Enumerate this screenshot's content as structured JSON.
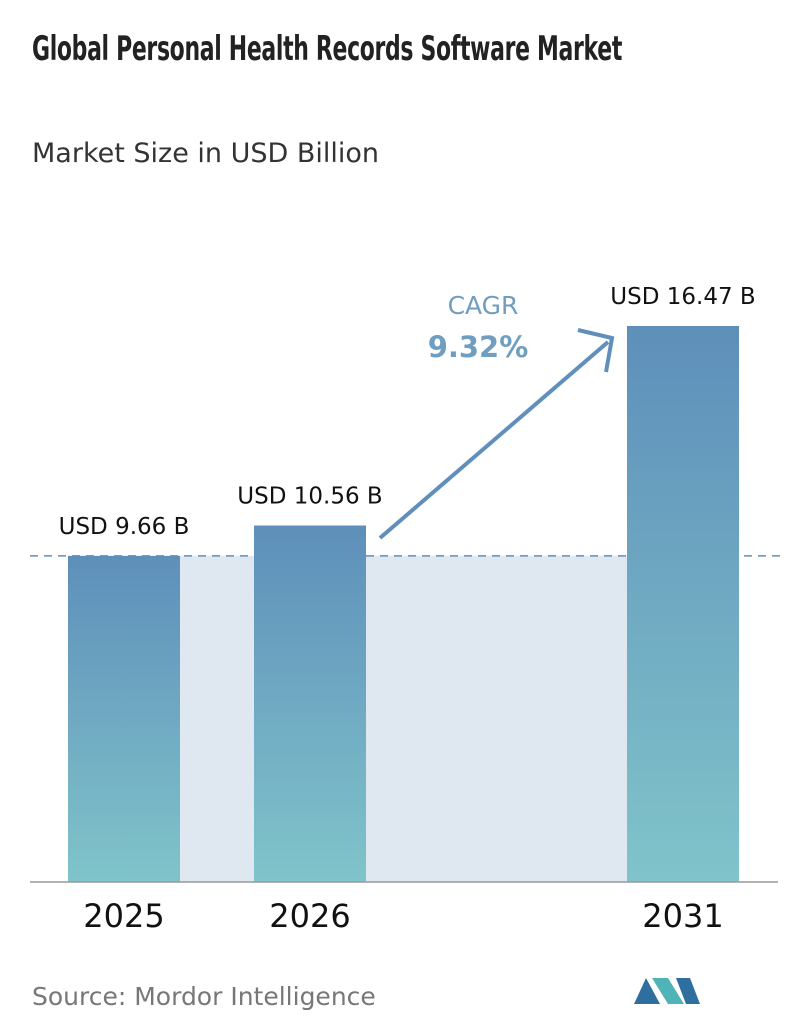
{
  "chart_data": {
    "type": "bar",
    "title": "Global Personal Health Records Software Market",
    "subtitle": "Market Size in USD Billion",
    "categories": [
      "2025",
      "2026",
      "2031"
    ],
    "values": [
      9.66,
      10.56,
      16.47
    ],
    "value_labels": [
      "USD 9.66 B",
      "USD 10.56 B",
      "USD 16.47 B"
    ],
    "annotation_label": "CAGR",
    "annotation_value": "9.32%",
    "source": "Source:  Mordor Intelligence"
  }
}
